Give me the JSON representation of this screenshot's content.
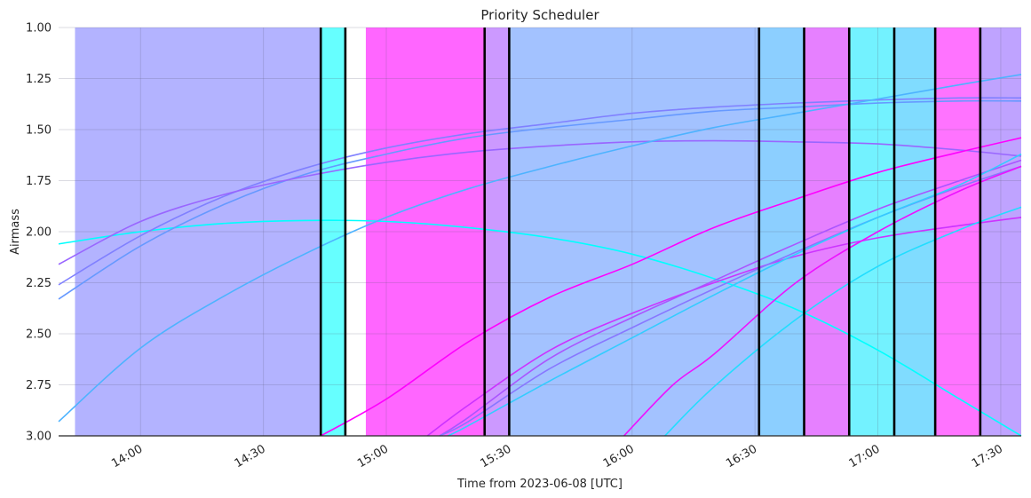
{
  "chart_data": {
    "type": "line",
    "title": "Priority Scheduler",
    "xlabel": "Time from 2023-06-08 [UTC]",
    "ylabel": "Airmass",
    "xlim": [
      "13:40",
      "17:35"
    ],
    "ylim": [
      3.0,
      1.0
    ],
    "y_inverted": true,
    "grid": true,
    "xticks": [
      "14:00",
      "14:30",
      "15:00",
      "15:30",
      "16:00",
      "16:30",
      "17:00",
      "17:30"
    ],
    "yticks": [
      "1.00",
      "1.25",
      "1.50",
      "1.75",
      "2.00",
      "2.25",
      "2.50",
      "2.75",
      "3.00"
    ],
    "schedule_blocks": [
      {
        "start": "13:44",
        "end": "14:44",
        "color": "#b3b3ff"
      },
      {
        "start": "14:44",
        "end": "14:50",
        "color": "#66ffff"
      },
      {
        "start": "14:55",
        "end": "15:24",
        "color": "#ff66ff"
      },
      {
        "start": "15:24",
        "end": "15:30",
        "color": "#cc99ff"
      },
      {
        "start": "15:30",
        "end": "16:31",
        "color": "#a3c2ff"
      },
      {
        "start": "16:31",
        "end": "16:42",
        "color": "#8ccfff"
      },
      {
        "start": "16:42",
        "end": "16:53",
        "color": "#e680ff"
      },
      {
        "start": "16:53",
        "end": "17:04",
        "color": "#73f2ff"
      },
      {
        "start": "17:04",
        "end": "17:14",
        "color": "#80dcff"
      },
      {
        "start": "17:14",
        "end": "17:25",
        "color": "#ff73ff"
      },
      {
        "start": "17:25",
        "end": "17:35",
        "color": "#bfa3ff"
      }
    ],
    "boundaries": [
      "14:44",
      "14:50",
      "15:24",
      "15:30",
      "16:31",
      "16:42",
      "16:53",
      "17:04",
      "17:14",
      "17:25"
    ],
    "series": [
      {
        "color": "#00ffff",
        "x": [
          "13:40",
          "14:00",
          "14:20",
          "14:40",
          "15:00",
          "15:20",
          "15:40",
          "16:00",
          "16:20",
          "16:40",
          "17:00",
          "17:20",
          "17:35"
        ],
        "y": [
          2.06,
          2.0,
          1.96,
          1.945,
          1.95,
          1.98,
          2.03,
          2.11,
          2.23,
          2.38,
          2.58,
          2.82,
          3.0
        ]
      },
      {
        "color": "#8080ff",
        "x": [
          "13:40",
          "14:00",
          "14:20",
          "14:40",
          "15:00",
          "15:20",
          "15:40",
          "16:00",
          "16:20",
          "16:40",
          "17:00",
          "17:20",
          "17:35"
        ],
        "y": [
          2.26,
          2.02,
          1.83,
          1.69,
          1.59,
          1.52,
          1.47,
          1.42,
          1.39,
          1.37,
          1.355,
          1.345,
          1.345
        ]
      },
      {
        "color": "#6699ff",
        "x": [
          "13:40",
          "14:00",
          "14:20",
          "14:40",
          "15:00",
          "15:20",
          "15:40",
          "16:00",
          "16:20",
          "16:40",
          "17:00",
          "17:20",
          "17:35"
        ],
        "y": [
          2.33,
          2.07,
          1.87,
          1.72,
          1.62,
          1.54,
          1.49,
          1.45,
          1.41,
          1.39,
          1.37,
          1.36,
          1.36
        ]
      },
      {
        "color": "#9966ff",
        "x": [
          "13:40",
          "14:00",
          "14:20",
          "14:40",
          "15:00",
          "15:20",
          "15:40",
          "16:00",
          "16:20",
          "16:40",
          "17:00",
          "17:20",
          "17:35"
        ],
        "y": [
          2.16,
          1.95,
          1.82,
          1.73,
          1.66,
          1.61,
          1.58,
          1.56,
          1.555,
          1.56,
          1.57,
          1.6,
          1.63
        ]
      },
      {
        "color": "#4db3ff",
        "x": [
          "13:40",
          "14:00",
          "14:20",
          "14:40",
          "15:00",
          "15:20",
          "15:40",
          "16:00",
          "16:20",
          "16:40",
          "17:00",
          "17:20",
          "17:35"
        ],
        "y": [
          2.93,
          2.57,
          2.32,
          2.11,
          1.93,
          1.79,
          1.68,
          1.58,
          1.49,
          1.42,
          1.35,
          1.28,
          1.23
        ]
      },
      {
        "color": "#ff00ff",
        "x": [
          "14:44",
          "15:00",
          "15:20",
          "15:40",
          "16:00",
          "16:20",
          "16:40",
          "17:00",
          "17:20",
          "17:35"
        ],
        "y": [
          3.0,
          2.82,
          2.54,
          2.32,
          2.16,
          1.98,
          1.84,
          1.71,
          1.61,
          1.54
        ]
      },
      {
        "color": "#cc33ff",
        "x": [
          "15:10",
          "15:20",
          "15:40",
          "16:00",
          "16:20",
          "16:40",
          "17:00",
          "17:20",
          "17:35"
        ],
        "y": [
          3.0,
          2.85,
          2.58,
          2.4,
          2.25,
          2.12,
          2.03,
          1.97,
          1.93
        ]
      },
      {
        "color": "#aa55ff",
        "x": [
          "15:13",
          "15:20",
          "15:40",
          "16:00",
          "16:20",
          "16:40",
          "17:00",
          "17:20",
          "17:35"
        ],
        "y": [
          3.0,
          2.91,
          2.62,
          2.42,
          2.24,
          2.06,
          1.89,
          1.75,
          1.65
        ]
      },
      {
        "color": "#8877ff",
        "x": [
          "15:13",
          "15:20",
          "15:40",
          "16:00",
          "16:20",
          "16:40",
          "17:00",
          "17:20",
          "17:35"
        ],
        "y": [
          3.0,
          2.93,
          2.67,
          2.47,
          2.28,
          2.1,
          1.93,
          1.78,
          1.68
        ]
      },
      {
        "color": "#33ccff",
        "x": [
          "15:15",
          "15:20",
          "15:40",
          "16:00",
          "16:20",
          "16:40",
          "17:00",
          "17:20",
          "17:35"
        ],
        "y": [
          3.0,
          2.95,
          2.73,
          2.52,
          2.31,
          2.11,
          1.93,
          1.77,
          1.62
        ]
      },
      {
        "color": "#ee11ff",
        "x": [
          "15:58",
          "16:10",
          "16:20",
          "16:40",
          "17:00",
          "17:20",
          "17:35"
        ],
        "y": [
          3.0,
          2.75,
          2.6,
          2.25,
          2.0,
          1.8,
          1.68
        ]
      },
      {
        "color": "#22ddff",
        "x": [
          "16:08",
          "16:20",
          "16:40",
          "17:00",
          "17:20",
          "17:35"
        ],
        "y": [
          3.0,
          2.76,
          2.43,
          2.17,
          1.99,
          1.88
        ]
      }
    ]
  }
}
